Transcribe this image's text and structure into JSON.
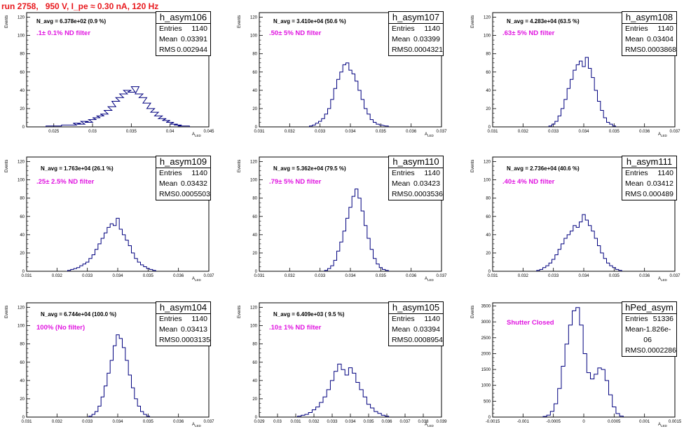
{
  "run_title": "run 2758,   950 V, I_pe ≈ 0.30 nA, 120 Hz",
  "axis_ylabel": "Events",
  "axis_xlabel": "A",
  "axis_xlabel_sub": "LED",
  "chart_data": [
    {
      "type": "histogram",
      "name": "h_asym106",
      "navg": "N_avg = 6.378e+02 (0.9 %)",
      "note": ".1± 0.1% ND filter",
      "stats": {
        "entries": "1140",
        "mean": "0.03391",
        "rms": "0.002944"
      },
      "xlim": [
        0.0215,
        0.045
      ],
      "ylim": [
        0,
        125
      ],
      "yticks": [
        0,
        20,
        40,
        60,
        80,
        100,
        120
      ],
      "xticks": [
        "0.025",
        "0.03",
        "0.035",
        "0.04",
        "0.045"
      ],
      "xtick_vals": [
        0.025,
        0.03,
        0.035,
        0.04,
        0.045
      ],
      "bins": [
        [
          0.0245,
          1
        ],
        [
          0.0255,
          1
        ],
        [
          0.0265,
          2
        ],
        [
          0.0275,
          2
        ],
        [
          0.028,
          4
        ],
        [
          0.0285,
          3
        ],
        [
          0.029,
          6
        ],
        [
          0.0295,
          5
        ],
        [
          0.03,
          8
        ],
        [
          0.0305,
          10
        ],
        [
          0.031,
          12
        ],
        [
          0.0315,
          14
        ],
        [
          0.032,
          18
        ],
        [
          0.0325,
          22
        ],
        [
          0.033,
          28
        ],
        [
          0.0335,
          32
        ],
        [
          0.034,
          36
        ],
        [
          0.0345,
          40
        ],
        [
          0.035,
          38
        ],
        [
          0.0355,
          44
        ],
        [
          0.036,
          36
        ],
        [
          0.0365,
          32
        ],
        [
          0.037,
          26
        ],
        [
          0.0375,
          20
        ],
        [
          0.038,
          16
        ],
        [
          0.0385,
          12
        ],
        [
          0.039,
          9
        ],
        [
          0.0395,
          7
        ],
        [
          0.04,
          5
        ],
        [
          0.0405,
          3
        ],
        [
          0.041,
          2
        ],
        [
          0.0415,
          1
        ],
        [
          0.042,
          1
        ]
      ]
    },
    {
      "type": "histogram",
      "name": "h_asym107",
      "navg": "N_avg = 3.410e+04 (50.6 %)",
      "note": ".50± 5% ND filter",
      "stats": {
        "entries": "1140",
        "mean": "0.03399",
        "rms": "0.0004321"
      },
      "xlim": [
        0.031,
        0.037
      ],
      "ylim": [
        0,
        125
      ],
      "yticks": [
        0,
        20,
        40,
        60,
        80,
        100,
        120
      ],
      "xticks": [
        "0.031",
        "0.032",
        "0.033",
        "0.034",
        "0.035",
        "0.036",
        "0.037"
      ],
      "xtick_vals": [
        0.031,
        0.032,
        0.033,
        0.034,
        0.035,
        0.036,
        0.037
      ],
      "bins": [
        [
          0.0327,
          1
        ],
        [
          0.0328,
          2
        ],
        [
          0.0329,
          4
        ],
        [
          0.033,
          6
        ],
        [
          0.0331,
          9
        ],
        [
          0.0332,
          14
        ],
        [
          0.0333,
          20
        ],
        [
          0.0334,
          30
        ],
        [
          0.0335,
          42
        ],
        [
          0.0336,
          52
        ],
        [
          0.0337,
          60
        ],
        [
          0.0338,
          68
        ],
        [
          0.0339,
          70
        ],
        [
          0.034,
          62
        ],
        [
          0.0341,
          58
        ],
        [
          0.0342,
          50
        ],
        [
          0.0343,
          40
        ],
        [
          0.0344,
          30
        ],
        [
          0.0345,
          20
        ],
        [
          0.0346,
          14
        ],
        [
          0.0347,
          8
        ],
        [
          0.0348,
          5
        ],
        [
          0.0349,
          3
        ],
        [
          0.035,
          2
        ],
        [
          0.0352,
          1
        ]
      ]
    },
    {
      "type": "histogram",
      "name": "h_asym108",
      "navg": "N_avg = 4.283e+04 (63.5 %)",
      "note": ".63± 5% ND filter",
      "stats": {
        "entries": "1140",
        "mean": "0.03404",
        "rms": "0.0003868"
      },
      "xlim": [
        0.031,
        0.037
      ],
      "ylim": [
        0,
        125
      ],
      "yticks": [
        0,
        20,
        40,
        60,
        80,
        100,
        120
      ],
      "xticks": [
        "0.031",
        "0.032",
        "0.033",
        "0.034",
        "0.035",
        "0.036",
        "0.037"
      ],
      "xtick_vals": [
        0.031,
        0.032,
        0.033,
        0.034,
        0.035,
        0.036,
        0.037
      ],
      "bins": [
        [
          0.0329,
          1
        ],
        [
          0.033,
          3
        ],
        [
          0.0331,
          6
        ],
        [
          0.0332,
          12
        ],
        [
          0.0333,
          20
        ],
        [
          0.0334,
          30
        ],
        [
          0.0335,
          42
        ],
        [
          0.0336,
          52
        ],
        [
          0.0337,
          62
        ],
        [
          0.0338,
          68
        ],
        [
          0.0339,
          72
        ],
        [
          0.034,
          66
        ],
        [
          0.0341,
          76
        ],
        [
          0.0342,
          64
        ],
        [
          0.0343,
          54
        ],
        [
          0.0344,
          40
        ],
        [
          0.0345,
          28
        ],
        [
          0.0346,
          18
        ],
        [
          0.0347,
          10
        ],
        [
          0.0348,
          5
        ],
        [
          0.0349,
          3
        ],
        [
          0.035,
          1
        ]
      ]
    },
    {
      "type": "histogram",
      "name": "h_asym109",
      "navg": "N_avg = 1.763e+04 (26.1 %)",
      "note": ".25± 2.5% ND filter",
      "stats": {
        "entries": "1140",
        "mean": "0.03432",
        "rms": "0.0005503"
      },
      "xlim": [
        0.031,
        0.037
      ],
      "ylim": [
        0,
        125
      ],
      "yticks": [
        0,
        20,
        40,
        60,
        80,
        100,
        120
      ],
      "xticks": [
        "0.031",
        "0.032",
        "0.033",
        "0.034",
        "0.035",
        "0.036",
        "0.037"
      ],
      "xtick_vals": [
        0.031,
        0.032,
        0.033,
        0.034,
        0.035,
        0.036,
        0.037
      ],
      "bins": [
        [
          0.0324,
          1
        ],
        [
          0.0325,
          2
        ],
        [
          0.0326,
          3
        ],
        [
          0.0327,
          4
        ],
        [
          0.0328,
          6
        ],
        [
          0.0329,
          8
        ],
        [
          0.033,
          10
        ],
        [
          0.0331,
          14
        ],
        [
          0.0332,
          18
        ],
        [
          0.0333,
          24
        ],
        [
          0.0334,
          30
        ],
        [
          0.0335,
          36
        ],
        [
          0.0336,
          42
        ],
        [
          0.0337,
          48
        ],
        [
          0.0338,
          52
        ],
        [
          0.0339,
          50
        ],
        [
          0.034,
          58
        ],
        [
          0.0341,
          46
        ],
        [
          0.0342,
          40
        ],
        [
          0.0343,
          34
        ],
        [
          0.0344,
          28
        ],
        [
          0.0345,
          20
        ],
        [
          0.0346,
          14
        ],
        [
          0.0347,
          10
        ],
        [
          0.0348,
          7
        ],
        [
          0.0349,
          5
        ],
        [
          0.035,
          3
        ],
        [
          0.0351,
          2
        ],
        [
          0.0352,
          1
        ]
      ]
    },
    {
      "type": "histogram",
      "name": "h_asym110",
      "navg": "N_avg = 5.362e+04 (79.5 %)",
      "note": ".79± 5% ND filter",
      "stats": {
        "entries": "1140",
        "mean": "0.03423",
        "rms": "0.0003536"
      },
      "xlim": [
        0.031,
        0.037
      ],
      "ylim": [
        0,
        125
      ],
      "yticks": [
        0,
        20,
        40,
        60,
        80,
        100,
        120
      ],
      "xticks": [
        "0.031",
        "0.032",
        "0.033",
        "0.034",
        "0.035",
        "0.036",
        "0.037"
      ],
      "xtick_vals": [
        0.031,
        0.032,
        0.033,
        0.034,
        0.035,
        0.036,
        0.037
      ],
      "bins": [
        [
          0.0332,
          1
        ],
        [
          0.0333,
          3
        ],
        [
          0.0334,
          6
        ],
        [
          0.0335,
          12
        ],
        [
          0.0336,
          22
        ],
        [
          0.0337,
          32
        ],
        [
          0.0338,
          44
        ],
        [
          0.0339,
          58
        ],
        [
          0.034,
          70
        ],
        [
          0.0341,
          82
        ],
        [
          0.0342,
          90
        ],
        [
          0.0343,
          80
        ],
        [
          0.0344,
          66
        ],
        [
          0.0345,
          50
        ],
        [
          0.0346,
          36
        ],
        [
          0.0347,
          24
        ],
        [
          0.0348,
          14
        ],
        [
          0.0349,
          8
        ],
        [
          0.035,
          4
        ],
        [
          0.0351,
          2
        ],
        [
          0.0352,
          1
        ]
      ]
    },
    {
      "type": "histogram",
      "name": "h_asym111",
      "navg": "N_avg = 2.736e+04 (40.6 %)",
      "note": ".40± 4% ND filter",
      "stats": {
        "entries": "1140",
        "mean": "0.03412",
        "rms": "0.000489"
      },
      "xlim": [
        0.031,
        0.037
      ],
      "ylim": [
        0,
        125
      ],
      "yticks": [
        0,
        20,
        40,
        60,
        80,
        100,
        120
      ],
      "xticks": [
        "0.031",
        "0.032",
        "0.033",
        "0.034",
        "0.035",
        "0.036",
        "0.037"
      ],
      "xtick_vals": [
        0.031,
        0.032,
        0.033,
        0.034,
        0.035,
        0.036,
        0.037
      ],
      "bins": [
        [
          0.0325,
          1
        ],
        [
          0.0326,
          2
        ],
        [
          0.0327,
          4
        ],
        [
          0.0328,
          6
        ],
        [
          0.0329,
          9
        ],
        [
          0.033,
          13
        ],
        [
          0.0331,
          18
        ],
        [
          0.0332,
          24
        ],
        [
          0.0333,
          30
        ],
        [
          0.0334,
          36
        ],
        [
          0.0335,
          40
        ],
        [
          0.0336,
          44
        ],
        [
          0.0337,
          50
        ],
        [
          0.0338,
          48
        ],
        [
          0.0339,
          54
        ],
        [
          0.034,
          62
        ],
        [
          0.0341,
          56
        ],
        [
          0.0342,
          50
        ],
        [
          0.0343,
          44
        ],
        [
          0.0344,
          36
        ],
        [
          0.0345,
          28
        ],
        [
          0.0346,
          20
        ],
        [
          0.0347,
          14
        ],
        [
          0.0348,
          9
        ],
        [
          0.0349,
          6
        ],
        [
          0.035,
          4
        ],
        [
          0.0351,
          2
        ],
        [
          0.0352,
          1
        ]
      ]
    },
    {
      "type": "histogram",
      "name": "h_asym104",
      "navg": "N_avg = 6.744e+04 (100.0 %)",
      "note": "100% (No filter)",
      "stats": {
        "entries": "1140",
        "mean": "0.03413",
        "rms": "0.0003135"
      },
      "xlim": [
        0.031,
        0.037
      ],
      "ylim": [
        0,
        125
      ],
      "yticks": [
        0,
        20,
        40,
        60,
        80,
        100,
        120
      ],
      "xticks": [
        "0.031",
        "0.032",
        "0.033",
        "0.034",
        "0.035",
        "0.036",
        "0.037"
      ],
      "xtick_vals": [
        0.031,
        0.032,
        0.033,
        0.034,
        0.035,
        0.036,
        0.037
      ],
      "bins": [
        [
          0.0331,
          1
        ],
        [
          0.0332,
          3
        ],
        [
          0.0333,
          6
        ],
        [
          0.0334,
          12
        ],
        [
          0.0335,
          22
        ],
        [
          0.0336,
          34
        ],
        [
          0.0337,
          48
        ],
        [
          0.0338,
          62
        ],
        [
          0.0339,
          78
        ],
        [
          0.034,
          90
        ],
        [
          0.0341,
          86
        ],
        [
          0.0342,
          76
        ],
        [
          0.0343,
          62
        ],
        [
          0.0344,
          46
        ],
        [
          0.0345,
          32
        ],
        [
          0.0346,
          20
        ],
        [
          0.0347,
          12
        ],
        [
          0.0348,
          6
        ],
        [
          0.0349,
          3
        ],
        [
          0.035,
          1
        ]
      ]
    },
    {
      "type": "histogram",
      "name": "h_asym105",
      "navg": "N_avg = 6.409e+03 ( 9.5 %)",
      "note": ".10± 1% ND filter",
      "stats": {
        "entries": "1140",
        "mean": "0.03394",
        "rms": "0.0008954"
      },
      "xlim": [
        0.029,
        0.039
      ],
      "ylim": [
        0,
        125
      ],
      "yticks": [
        0,
        20,
        40,
        60,
        80,
        100,
        120
      ],
      "xticks": [
        "0.029",
        "0.03",
        "0.031",
        "0.032",
        "0.033",
        "0.034",
        "0.035",
        "0.036",
        "0.037",
        "0.038",
        "0.039"
      ],
      "xtick_vals": [
        0.029,
        0.03,
        0.031,
        0.032,
        0.033,
        0.034,
        0.035,
        0.036,
        0.037,
        0.038,
        0.039
      ],
      "bins": [
        [
          0.0312,
          1
        ],
        [
          0.0314,
          2
        ],
        [
          0.0316,
          3
        ],
        [
          0.0318,
          5
        ],
        [
          0.032,
          8
        ],
        [
          0.0322,
          11
        ],
        [
          0.0324,
          16
        ],
        [
          0.0326,
          22
        ],
        [
          0.0328,
          30
        ],
        [
          0.033,
          40
        ],
        [
          0.0332,
          50
        ],
        [
          0.0334,
          58
        ],
        [
          0.0336,
          52
        ],
        [
          0.0338,
          46
        ],
        [
          0.034,
          54
        ],
        [
          0.0342,
          48
        ],
        [
          0.0344,
          38
        ],
        [
          0.0346,
          30
        ],
        [
          0.0348,
          22
        ],
        [
          0.035,
          14
        ],
        [
          0.0352,
          10
        ],
        [
          0.0354,
          6
        ],
        [
          0.0356,
          4
        ],
        [
          0.0358,
          2
        ],
        [
          0.036,
          1
        ]
      ]
    },
    {
      "type": "histogram",
      "name": "hPed_asym",
      "navg": "",
      "note": "Shutter Closed",
      "stats": {
        "entries": "51336",
        "mean": "-1.826e-06",
        "rms": "0.0002286"
      },
      "xlim": [
        -0.0015,
        0.0015
      ],
      "ylim": [
        0,
        3600
      ],
      "yticks": [
        0,
        500,
        1000,
        1500,
        2000,
        2500,
        3000,
        3500
      ],
      "xticks": [
        "-0.0015",
        "-0.001",
        "-0.0005",
        "0",
        "0.0005",
        "0.001",
        "0.0015"
      ],
      "xtick_vals": [
        -0.0015,
        -0.001,
        -0.0005,
        0,
        0.0005,
        0.001,
        0.0015
      ],
      "bins": [
        [
          -0.00064,
          20
        ],
        [
          -0.00058,
          60
        ],
        [
          -0.00052,
          180
        ],
        [
          -0.00046,
          420
        ],
        [
          -0.0004,
          900
        ],
        [
          -0.00034,
          1600
        ],
        [
          -0.00028,
          2300
        ],
        [
          -0.00022,
          2900
        ],
        [
          -0.00016,
          3350
        ],
        [
          -0.0001,
          3450
        ],
        [
          -4e-05,
          2900
        ],
        [
          2e-05,
          2000
        ],
        [
          8e-05,
          1400
        ],
        [
          0.00014,
          1200
        ],
        [
          0.0002,
          1350
        ],
        [
          0.00026,
          1550
        ],
        [
          0.00032,
          1500
        ],
        [
          0.00038,
          1150
        ],
        [
          0.00044,
          700
        ],
        [
          0.0005,
          320
        ],
        [
          0.00056,
          110
        ],
        [
          0.00062,
          30
        ]
      ]
    }
  ]
}
